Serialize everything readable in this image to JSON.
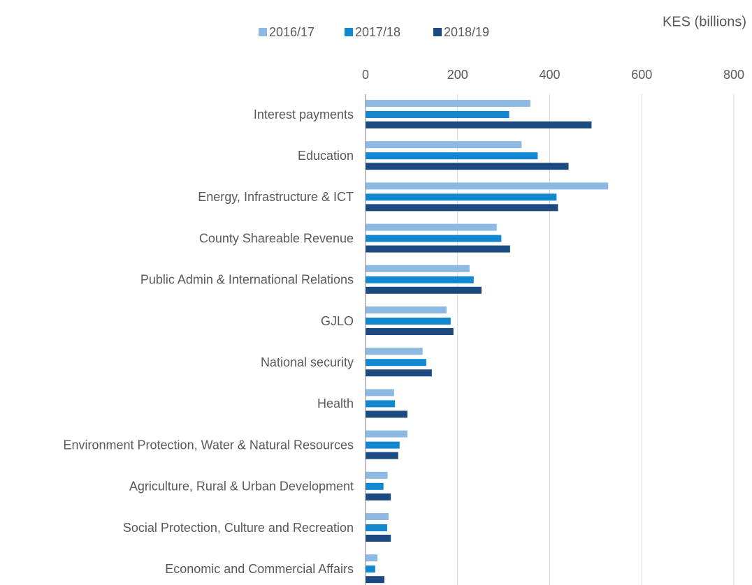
{
  "chart_data": {
    "type": "bar",
    "orientation": "horizontal",
    "xlabel": "KES (billions)",
    "categories": [
      "Interest payments",
      "Education",
      "Energy, Infrastructure & ICT",
      "County Shareable Revenue",
      "Public Admin & International Relations",
      "GJLO",
      "National security",
      "Health",
      "Environment Protection, Water & Natural Resources",
      "Agriculture, Rural & Urban Development",
      "Social Protection, Culture and Recreation",
      "Economic and Commercial Affairs"
    ],
    "series": [
      {
        "name": "2016/17",
        "color": "#8db9e3",
        "values": [
          358,
          339,
          527,
          285,
          226,
          176,
          124,
          62,
          91,
          48,
          50,
          26
        ]
      },
      {
        "name": "2017/18",
        "color": "#1288d0",
        "values": [
          312,
          374,
          415,
          295,
          235,
          185,
          132,
          64,
          74,
          39,
          47,
          21
        ]
      },
      {
        "name": "2018/19",
        "color": "#1b4a80",
        "values": [
          491,
          441,
          418,
          314,
          252,
          191,
          144,
          91,
          71,
          55,
          55,
          41
        ]
      }
    ],
    "xlim": [
      0,
      800
    ],
    "xticks": [
      0,
      200,
      400,
      600,
      800
    ],
    "grid": true,
    "legend": "top"
  }
}
